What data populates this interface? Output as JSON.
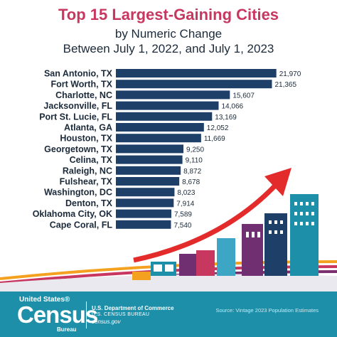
{
  "footer": {
    "logo_small": "United States®",
    "logo_big": "Census",
    "logo_bureau": "Bureau",
    "dept_line1": "U.S. Department of Commerce",
    "dept_line2": "U.S. CENSUS BUREAU",
    "dept_line3": "census.gov",
    "source": "Source: Vintage 2023 Population Estimates"
  },
  "colors": {
    "title": "#c8375f",
    "bar": "#1d3f68",
    "arrow": "#e32b2b",
    "footer": "#1e8fa9"
  },
  "chart_data": {
    "type": "bar",
    "orientation": "horizontal",
    "title": "Top 15 Largest-Gaining Cities",
    "subtitle_line1": "by Numeric Change",
    "subtitle_line2": "Between July 1, 2022, and July 1, 2023",
    "categories": [
      "San Antonio, TX",
      "Fort Worth, TX",
      "Charlotte, NC",
      "Jacksonville, FL",
      "Port St. Lucie, FL",
      "Atlanta, GA",
      "Houston, TX",
      "Georgetown, TX",
      "Celina, TX",
      "Raleigh, NC",
      "Fulshear, TX",
      "Washington, DC",
      "Denton, TX",
      "Oklahoma City, OK",
      "Cape Coral, FL"
    ],
    "values": [
      21970,
      21365,
      15607,
      14066,
      13169,
      12052,
      11669,
      9250,
      9110,
      8872,
      8678,
      8023,
      7914,
      7589,
      7540
    ],
    "value_labels": [
      "21,970",
      "21,365",
      "15,607",
      "14,066",
      "13,169",
      "12,052",
      "11,669",
      "9,250",
      "9,110",
      "8,872",
      "8,678",
      "8,023",
      "7,914",
      "7,589",
      "7,540"
    ],
    "xlim": [
      0,
      22000
    ],
    "grid": false,
    "legend": "none"
  }
}
